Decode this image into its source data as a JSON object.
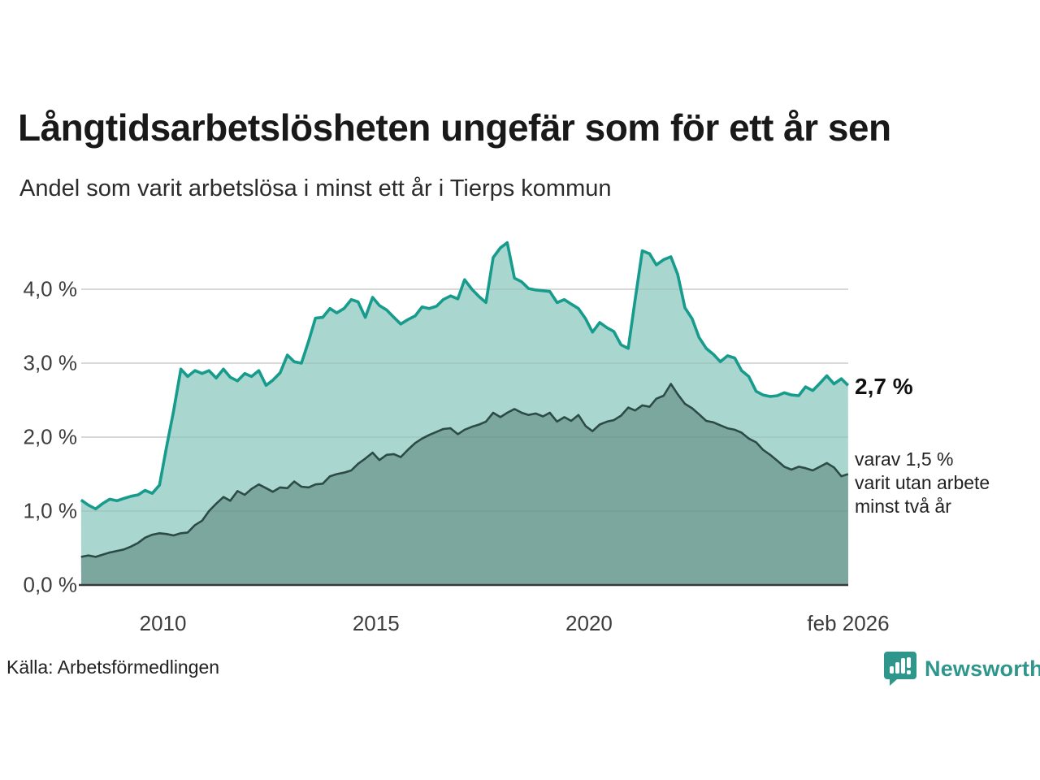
{
  "header": {
    "title": "Långtidsarbetslösheten ungefär som för ett år sen",
    "subtitle": "Andel som varit arbetslösa i minst ett år i Tierps kommun"
  },
  "footer": {
    "source": "Källa: Arbetsförmedlingen",
    "brand": "Newsworthy",
    "brand_color": "#2f968c"
  },
  "chart_data": {
    "type": "area",
    "title": "Långtidsarbetslösheten ungefär som för ett år sen",
    "subtitle": "Andel som varit arbetslösa i minst ett år i Tierps kommun",
    "grid": true,
    "ylim": [
      0,
      4.8
    ],
    "x_range": [
      2008.083,
      2026.083
    ],
    "y_ticks": [
      {
        "label": "0,0 %",
        "value": 0
      },
      {
        "label": "1,0 %",
        "value": 1
      },
      {
        "label": "2,0 %",
        "value": 2
      },
      {
        "label": "3,0 %",
        "value": 3
      },
      {
        "label": "4,0 %",
        "value": 4
      }
    ],
    "x_ticks": [
      {
        "label": "2010",
        "year": 2010
      },
      {
        "label": "2015",
        "year": 2015
      },
      {
        "label": "2020",
        "year": 2020
      },
      {
        "label": "feb 2026",
        "year": 2026.083
      }
    ],
    "annotations": {
      "end_value_primary": "2,7 %",
      "end_secondary_lines": [
        "varav 1,5 %",
        "varit utan arbete",
        "minst två år"
      ]
    },
    "colors": {
      "gridline": "#dcdcdc",
      "axis_line": "#383838",
      "series1_line": "#169b8c",
      "series1_fill": "#a9d6ce",
      "series2_line": "#2d4b46",
      "series2_fill": "#7ca79f"
    },
    "series": [
      {
        "name": "Andel arbetslösa minst ett år",
        "end_value": 2.7,
        "points": [
          [
            2008.08,
            1.15
          ],
          [
            2008.25,
            1.08
          ],
          [
            2008.42,
            1.03
          ],
          [
            2008.58,
            1.1
          ],
          [
            2008.75,
            1.16
          ],
          [
            2008.92,
            1.14
          ],
          [
            2009.08,
            1.17
          ],
          [
            2009.25,
            1.2
          ],
          [
            2009.42,
            1.22
          ],
          [
            2009.58,
            1.28
          ],
          [
            2009.75,
            1.24
          ],
          [
            2009.92,
            1.35
          ],
          [
            2010.08,
            1.85
          ],
          [
            2010.25,
            2.35
          ],
          [
            2010.42,
            2.92
          ],
          [
            2010.58,
            2.82
          ],
          [
            2010.75,
            2.9
          ],
          [
            2010.92,
            2.86
          ],
          [
            2011.08,
            2.9
          ],
          [
            2011.25,
            2.8
          ],
          [
            2011.42,
            2.92
          ],
          [
            2011.58,
            2.81
          ],
          [
            2011.75,
            2.76
          ],
          [
            2011.92,
            2.86
          ],
          [
            2012.08,
            2.82
          ],
          [
            2012.25,
            2.9
          ],
          [
            2012.42,
            2.7
          ],
          [
            2012.58,
            2.77
          ],
          [
            2012.75,
            2.87
          ],
          [
            2012.92,
            3.11
          ],
          [
            2013.08,
            3.02
          ],
          [
            2013.25,
            3.0
          ],
          [
            2013.42,
            3.3
          ],
          [
            2013.58,
            3.61
          ],
          [
            2013.75,
            3.62
          ],
          [
            2013.92,
            3.74
          ],
          [
            2014.08,
            3.68
          ],
          [
            2014.25,
            3.74
          ],
          [
            2014.42,
            3.86
          ],
          [
            2014.58,
            3.83
          ],
          [
            2014.75,
            3.62
          ],
          [
            2014.92,
            3.89
          ],
          [
            2015.08,
            3.78
          ],
          [
            2015.25,
            3.72
          ],
          [
            2015.42,
            3.62
          ],
          [
            2015.58,
            3.53
          ],
          [
            2015.75,
            3.59
          ],
          [
            2015.92,
            3.64
          ],
          [
            2016.08,
            3.76
          ],
          [
            2016.25,
            3.74
          ],
          [
            2016.42,
            3.77
          ],
          [
            2016.58,
            3.86
          ],
          [
            2016.75,
            3.91
          ],
          [
            2016.92,
            3.87
          ],
          [
            2017.08,
            4.13
          ],
          [
            2017.25,
            4.0
          ],
          [
            2017.42,
            3.9
          ],
          [
            2017.58,
            3.82
          ],
          [
            2017.75,
            4.43
          ],
          [
            2017.92,
            4.56
          ],
          [
            2018.08,
            4.63
          ],
          [
            2018.25,
            4.15
          ],
          [
            2018.42,
            4.1
          ],
          [
            2018.58,
            4.01
          ],
          [
            2018.75,
            3.99
          ],
          [
            2018.92,
            3.98
          ],
          [
            2019.08,
            3.97
          ],
          [
            2019.25,
            3.82
          ],
          [
            2019.42,
            3.86
          ],
          [
            2019.58,
            3.8
          ],
          [
            2019.75,
            3.74
          ],
          [
            2019.92,
            3.6
          ],
          [
            2020.08,
            3.42
          ],
          [
            2020.25,
            3.55
          ],
          [
            2020.42,
            3.48
          ],
          [
            2020.58,
            3.43
          ],
          [
            2020.75,
            3.25
          ],
          [
            2020.92,
            3.2
          ],
          [
            2021.08,
            3.85
          ],
          [
            2021.25,
            4.52
          ],
          [
            2021.42,
            4.48
          ],
          [
            2021.58,
            4.33
          ],
          [
            2021.75,
            4.4
          ],
          [
            2021.92,
            4.44
          ],
          [
            2022.08,
            4.2
          ],
          [
            2022.25,
            3.75
          ],
          [
            2022.42,
            3.6
          ],
          [
            2022.58,
            3.35
          ],
          [
            2022.75,
            3.2
          ],
          [
            2022.92,
            3.12
          ],
          [
            2023.08,
            3.02
          ],
          [
            2023.25,
            3.1
          ],
          [
            2023.42,
            3.07
          ],
          [
            2023.58,
            2.9
          ],
          [
            2023.75,
            2.82
          ],
          [
            2023.92,
            2.62
          ],
          [
            2024.08,
            2.57
          ],
          [
            2024.25,
            2.55
          ],
          [
            2024.42,
            2.56
          ],
          [
            2024.58,
            2.6
          ],
          [
            2024.75,
            2.57
          ],
          [
            2024.92,
            2.56
          ],
          [
            2025.08,
            2.68
          ],
          [
            2025.25,
            2.63
          ],
          [
            2025.42,
            2.73
          ],
          [
            2025.58,
            2.83
          ],
          [
            2025.75,
            2.72
          ],
          [
            2025.92,
            2.79
          ],
          [
            2026.08,
            2.7
          ]
        ]
      },
      {
        "name": "Andel arbetslösa minst två år",
        "end_value": 1.5,
        "points": [
          [
            2008.08,
            0.38
          ],
          [
            2008.25,
            0.4
          ],
          [
            2008.42,
            0.38
          ],
          [
            2008.58,
            0.41
          ],
          [
            2008.75,
            0.44
          ],
          [
            2008.92,
            0.46
          ],
          [
            2009.08,
            0.48
          ],
          [
            2009.25,
            0.52
          ],
          [
            2009.42,
            0.57
          ],
          [
            2009.58,
            0.64
          ],
          [
            2009.75,
            0.68
          ],
          [
            2009.92,
            0.7
          ],
          [
            2010.08,
            0.69
          ],
          [
            2010.25,
            0.67
          ],
          [
            2010.42,
            0.7
          ],
          [
            2010.58,
            0.71
          ],
          [
            2010.75,
            0.81
          ],
          [
            2010.92,
            0.87
          ],
          [
            2011.08,
            1.0
          ],
          [
            2011.25,
            1.1
          ],
          [
            2011.42,
            1.19
          ],
          [
            2011.58,
            1.14
          ],
          [
            2011.75,
            1.27
          ],
          [
            2011.92,
            1.22
          ],
          [
            2012.08,
            1.3
          ],
          [
            2012.25,
            1.36
          ],
          [
            2012.42,
            1.31
          ],
          [
            2012.58,
            1.26
          ],
          [
            2012.75,
            1.32
          ],
          [
            2012.92,
            1.31
          ],
          [
            2013.08,
            1.4
          ],
          [
            2013.25,
            1.33
          ],
          [
            2013.42,
            1.32
          ],
          [
            2013.58,
            1.36
          ],
          [
            2013.75,
            1.37
          ],
          [
            2013.92,
            1.47
          ],
          [
            2014.08,
            1.5
          ],
          [
            2014.25,
            1.52
          ],
          [
            2014.42,
            1.55
          ],
          [
            2014.58,
            1.64
          ],
          [
            2014.75,
            1.71
          ],
          [
            2014.92,
            1.79
          ],
          [
            2015.08,
            1.69
          ],
          [
            2015.25,
            1.76
          ],
          [
            2015.42,
            1.77
          ],
          [
            2015.58,
            1.73
          ],
          [
            2015.75,
            1.83
          ],
          [
            2015.92,
            1.92
          ],
          [
            2016.08,
            1.98
          ],
          [
            2016.25,
            2.03
          ],
          [
            2016.42,
            2.07
          ],
          [
            2016.58,
            2.11
          ],
          [
            2016.75,
            2.12
          ],
          [
            2016.92,
            2.04
          ],
          [
            2017.08,
            2.1
          ],
          [
            2017.25,
            2.14
          ],
          [
            2017.42,
            2.17
          ],
          [
            2017.58,
            2.21
          ],
          [
            2017.75,
            2.33
          ],
          [
            2017.92,
            2.27
          ],
          [
            2018.08,
            2.33
          ],
          [
            2018.25,
            2.38
          ],
          [
            2018.42,
            2.33
          ],
          [
            2018.58,
            2.3
          ],
          [
            2018.75,
            2.32
          ],
          [
            2018.92,
            2.28
          ],
          [
            2019.08,
            2.33
          ],
          [
            2019.25,
            2.21
          ],
          [
            2019.42,
            2.27
          ],
          [
            2019.58,
            2.22
          ],
          [
            2019.75,
            2.3
          ],
          [
            2019.92,
            2.15
          ],
          [
            2020.08,
            2.08
          ],
          [
            2020.25,
            2.17
          ],
          [
            2020.42,
            2.21
          ],
          [
            2020.58,
            2.23
          ],
          [
            2020.75,
            2.29
          ],
          [
            2020.92,
            2.4
          ],
          [
            2021.08,
            2.36
          ],
          [
            2021.25,
            2.43
          ],
          [
            2021.42,
            2.41
          ],
          [
            2021.58,
            2.52
          ],
          [
            2021.75,
            2.56
          ],
          [
            2021.92,
            2.72
          ],
          [
            2022.08,
            2.58
          ],
          [
            2022.25,
            2.45
          ],
          [
            2022.42,
            2.39
          ],
          [
            2022.58,
            2.31
          ],
          [
            2022.75,
            2.22
          ],
          [
            2022.92,
            2.2
          ],
          [
            2023.08,
            2.16
          ],
          [
            2023.25,
            2.12
          ],
          [
            2023.42,
            2.1
          ],
          [
            2023.58,
            2.06
          ],
          [
            2023.75,
            1.98
          ],
          [
            2023.92,
            1.93
          ],
          [
            2024.08,
            1.83
          ],
          [
            2024.25,
            1.76
          ],
          [
            2024.42,
            1.68
          ],
          [
            2024.58,
            1.6
          ],
          [
            2024.75,
            1.56
          ],
          [
            2024.92,
            1.6
          ],
          [
            2025.08,
            1.58
          ],
          [
            2025.25,
            1.55
          ],
          [
            2025.42,
            1.6
          ],
          [
            2025.58,
            1.65
          ],
          [
            2025.75,
            1.59
          ],
          [
            2025.92,
            1.47
          ],
          [
            2026.08,
            1.5
          ]
        ]
      }
    ]
  }
}
